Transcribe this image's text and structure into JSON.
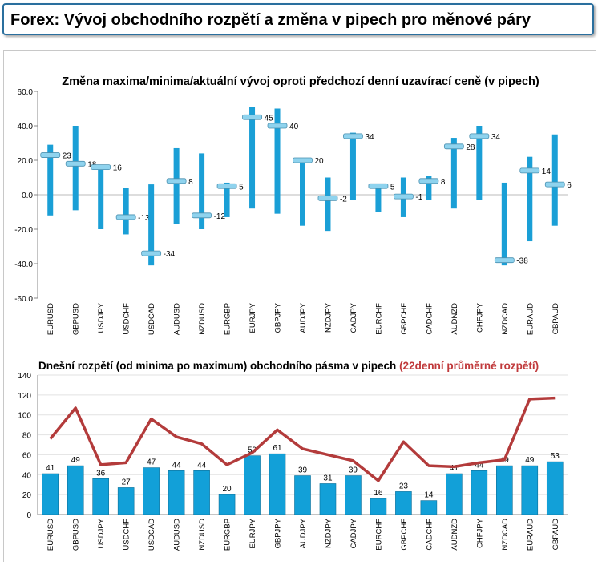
{
  "header": {
    "title": "Forex: Vývoj obchodního rozpětí a změna v pipech pro měnové páry"
  },
  "chart_data": [
    {
      "type": "range",
      "title": "Změna maxima/minima/aktuální vývoj oproti předchozí denní uzavírací ceně (v pipech)",
      "ylim": [
        -60,
        60
      ],
      "yticks": [
        "60.0",
        "40.0",
        "20.0",
        "0.0",
        "-20.0",
        "-40.0",
        "-60.0"
      ],
      "tick_values": [
        60,
        40,
        20,
        0,
        -20,
        -40,
        -60
      ],
      "categories": [
        "EURUSD",
        "GBPUSD",
        "USDJPY",
        "USDCHF",
        "USDCAD",
        "AUDUSD",
        "NZDUSD",
        "EURGBP",
        "EURJPY",
        "GBPJPY",
        "AUDJPY",
        "NZDJPY",
        "CADJPY",
        "EURCHF",
        "GBPCHF",
        "CADCHF",
        "AUDNZD",
        "CHFJPY",
        "NZDCAD",
        "EURAUD",
        "GBPAUD"
      ],
      "high": [
        29,
        40,
        17,
        4,
        6,
        27,
        24,
        7,
        51,
        50,
        21,
        10,
        36,
        6,
        10,
        11,
        33,
        40,
        7,
        22,
        35
      ],
      "low": [
        -12,
        -9,
        -20,
        -23,
        -41,
        -17,
        -20,
        -13,
        -8,
        -11,
        -18,
        -21,
        -3,
        -10,
        -13,
        -3,
        -8,
        -3,
        -41,
        -27,
        -18
      ],
      "current": [
        23,
        18,
        16,
        -13,
        -34,
        8,
        -12,
        5,
        45,
        40,
        20,
        -2,
        34,
        5,
        -1,
        8,
        28,
        34,
        -38,
        14,
        6
      ],
      "labels": [
        "23",
        "18",
        "16",
        "-13",
        "-34",
        "8",
        "-12",
        "5",
        "45",
        "40",
        "20",
        "-2",
        "34",
        "5",
        "-1",
        "8",
        "28",
        "34",
        "-38",
        "14",
        "6"
      ],
      "colors": {
        "bar": "#1a9fd6",
        "marker": "#8fd3ee"
      }
    },
    {
      "type": "bar",
      "title": "Dnešní rozpětí (od minima po maximum) obchodního pásma v pipech",
      "title_highlight": "(22denní průměrné rozpětí)",
      "ylim": [
        0,
        140
      ],
      "yticks": [
        "140",
        "120",
        "100",
        "80",
        "60",
        "40",
        "20",
        "0"
      ],
      "tick_values": [
        140,
        120,
        100,
        80,
        60,
        40,
        20,
        0
      ],
      "categories": [
        "EURUSD",
        "GBPUSD",
        "USDJPY",
        "USDCHF",
        "USDCAD",
        "AUDUSD",
        "NZDUSD",
        "EURGBP",
        "EURJPY",
        "GBPJPY",
        "AUDJPY",
        "NZDJPY",
        "CADJPY",
        "EURCHF",
        "GBPCHF",
        "CADCHF",
        "AUDNZD",
        "CHFJPY",
        "NZDCAD",
        "EURAUD",
        "GBPAUD"
      ],
      "series": [
        {
          "values": [
            41,
            49,
            36,
            27,
            47,
            44,
            44,
            20,
            59,
            61,
            39,
            31,
            39,
            16,
            23,
            14,
            41,
            44,
            49,
            49,
            53
          ]
        },
        {
          "values": [
            76,
            107,
            50,
            52,
            96,
            78,
            71,
            50,
            62,
            85,
            66,
            60,
            54,
            34,
            73,
            49,
            48,
            52,
            55,
            116,
            117
          ]
        }
      ],
      "labels": [
        "41",
        "49",
        "36",
        "27",
        "47",
        "44",
        "44",
        "20",
        "59",
        "61",
        "39",
        "31",
        "39",
        "16",
        "23",
        "14",
        "41",
        "44",
        "49",
        "49",
        "53"
      ],
      "colors": {
        "bar": "#12a0d8",
        "line": "#b33b3b",
        "highlight": "#c0393b"
      }
    }
  ]
}
